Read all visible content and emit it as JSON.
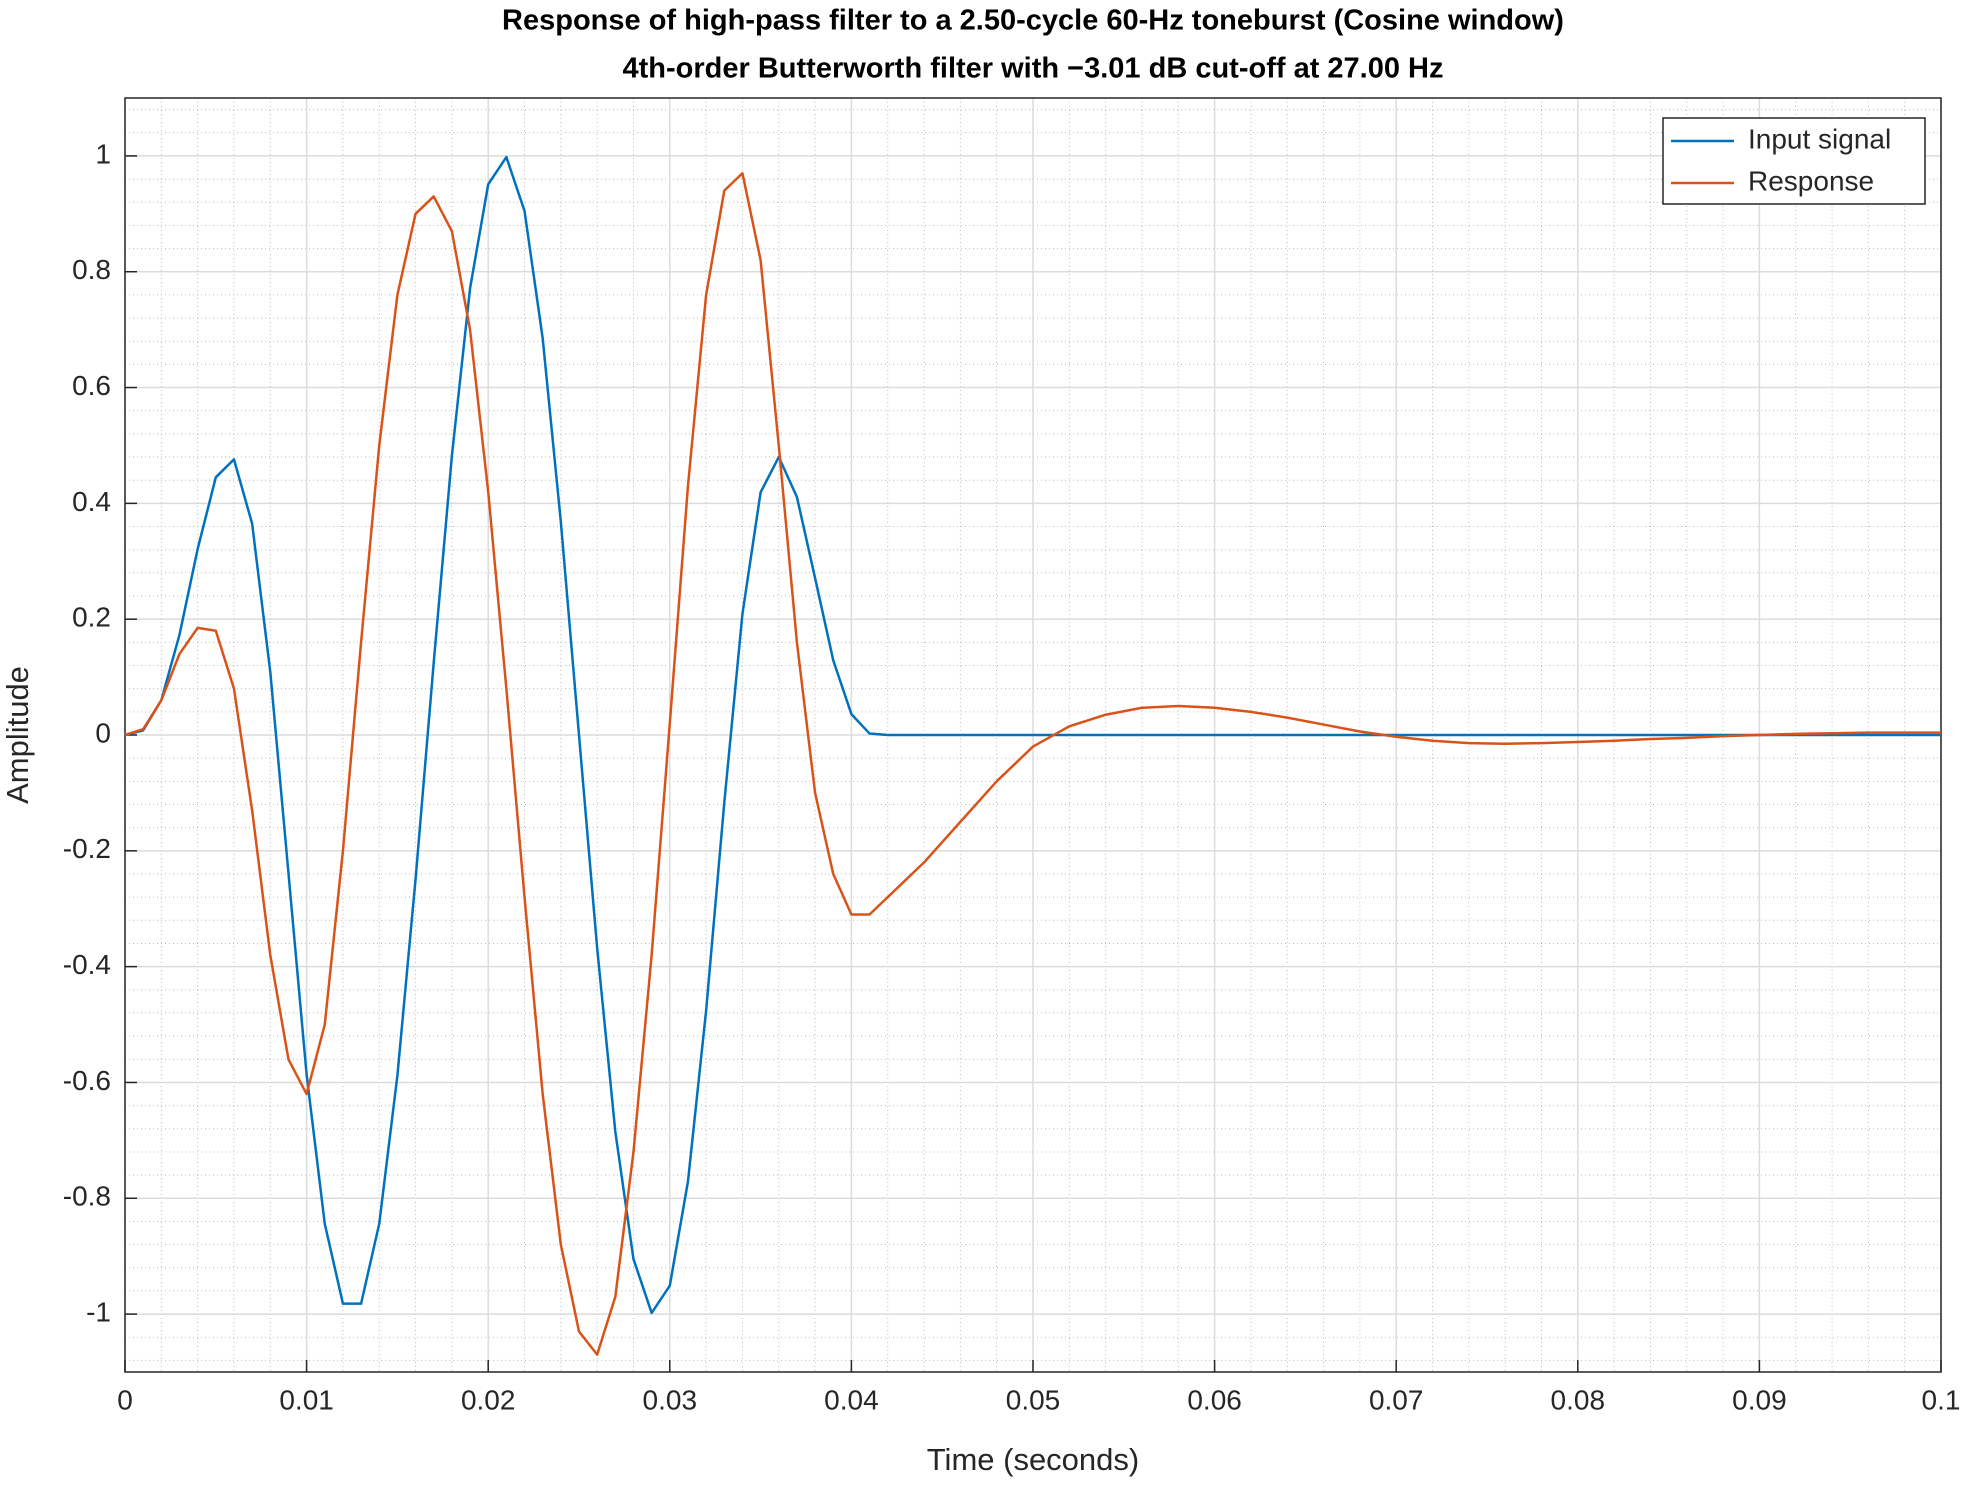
{
  "chart_data": {
    "type": "line",
    "title": "Response of high-pass filter to a 2.50-cycle 60-Hz toneburst (Cosine window)",
    "subtitle": "4th-order Butterworth filter with −3.01 dB cut-off at 27.00 Hz",
    "x_label": "Time (seconds)",
    "y_label": "Amplitude",
    "x": [
      0,
      0.001,
      0.002,
      0.003,
      0.004,
      0.005,
      0.006,
      0.007,
      0.008,
      0.009,
      0.01,
      0.011,
      0.012,
      0.013,
      0.014,
      0.015,
      0.016,
      0.017,
      0.018,
      0.019,
      0.02,
      0.021,
      0.022,
      0.023,
      0.024,
      0.025,
      0.026,
      0.027,
      0.028,
      0.029,
      0.03,
      0.031,
      0.032,
      0.033,
      0.034,
      0.035,
      0.036,
      0.037,
      0.038,
      0.039,
      0.04,
      0.041,
      0.042,
      0.044,
      0.046,
      0.048,
      0.05,
      0.052,
      0.054,
      0.056,
      0.058,
      0.06,
      0.062,
      0.064,
      0.066,
      0.068,
      0.07,
      0.072,
      0.074,
      0.076,
      0.078,
      0.08,
      0.082,
      0.084,
      0.086,
      0.088,
      0.09,
      0.092,
      0.094,
      0.096,
      0.098,
      0.1
    ],
    "series": [
      {
        "name": "Input signal",
        "color": "#0072BD",
        "values": [
          0,
          0.008,
          0.06,
          0.173,
          0.321,
          0.445,
          0.476,
          0.365,
          0.109,
          -0.238,
          -0.586,
          -0.844,
          -0.982,
          -0.982,
          -0.844,
          -0.588,
          -0.249,
          0.125,
          0.482,
          0.771,
          0.951,
          0.998,
          0.905,
          0.685,
          0.368,
          0,
          -0.368,
          -0.685,
          -0.905,
          -0.998,
          -0.951,
          -0.771,
          -0.476,
          -0.117,
          0.209,
          0.419,
          0.48,
          0.411,
          0.271,
          0.129,
          0.036,
          0.0025,
          0,
          0,
          0,
          0,
          0,
          0,
          0,
          0,
          0,
          0,
          0,
          0,
          0,
          0,
          0,
          0,
          0,
          0,
          0,
          0,
          0,
          0,
          0,
          0,
          0,
          0,
          0,
          0,
          0,
          0
        ]
      },
      {
        "name": "Response",
        "color": "#D95319",
        "values": [
          0,
          0.01,
          0.06,
          0.14,
          0.185,
          0.18,
          0.08,
          -0.13,
          -0.38,
          -0.56,
          -0.62,
          -0.5,
          -0.2,
          0.16,
          0.5,
          0.76,
          0.9,
          0.93,
          0.87,
          0.7,
          0.42,
          0.08,
          -0.28,
          -0.62,
          -0.88,
          -1.03,
          -1.07,
          -0.97,
          -0.72,
          -0.38,
          0.02,
          0.43,
          0.76,
          0.94,
          0.97,
          0.82,
          0.5,
          0.16,
          -0.1,
          -0.24,
          -0.31,
          -0.31,
          -0.28,
          -0.22,
          -0.15,
          -0.08,
          -0.02,
          0.015,
          0.035,
          0.047,
          0.05,
          0.047,
          0.04,
          0.03,
          0.018,
          0.006,
          -0.003,
          -0.01,
          -0.014,
          -0.015,
          -0.014,
          -0.012,
          -0.01,
          -0.007,
          -0.005,
          -0.002,
          0,
          0.002,
          0.003,
          0.004,
          0.004,
          0.004
        ]
      }
    ],
    "xlim": [
      0,
      0.1
    ],
    "xticks": [
      0,
      0.01,
      0.02,
      0.03,
      0.04,
      0.05,
      0.06,
      0.07,
      0.08,
      0.09,
      0.1
    ],
    "ylim": [
      -1.1,
      1.1
    ],
    "yticks": [
      -1,
      -0.8,
      -0.6,
      -0.4,
      -0.2,
      0,
      0.2,
      0.4,
      0.6,
      0.8,
      1
    ],
    "grid": true,
    "minor_grid": true,
    "legend": "upper right"
  }
}
